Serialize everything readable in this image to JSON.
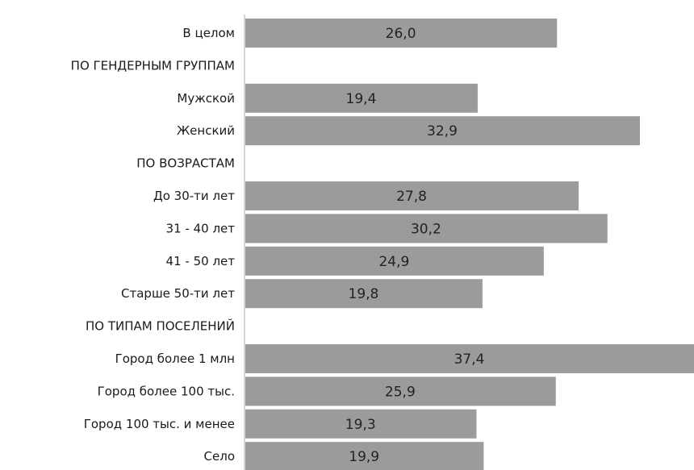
{
  "chart_data": {
    "type": "bar",
    "orientation": "horizontal",
    "categories": [
      "В целом",
      "ПО ГЕНДЕРНЫМ ГРУППАМ",
      "Мужской",
      "Женский",
      "ПО ВОЗРАСТАМ",
      "До 30-ти лет",
      "31 - 40 лет",
      "41 - 50 лет",
      "Старше 50-ти лет",
      "ПО ТИПАМ ПОСЕЛЕНИЙ",
      "Город более 1 млн",
      "Город более 100 тыс.",
      "Город 100 тыс. и менее",
      "Село"
    ],
    "values": [
      26.0,
      null,
      19.4,
      32.9,
      null,
      27.8,
      30.2,
      24.9,
      19.8,
      null,
      37.4,
      25.9,
      19.3,
      19.9
    ],
    "value_labels": [
      "26,0",
      "",
      "19,4",
      "32,9",
      "",
      "27,8",
      "30,2",
      "24,9",
      "19,8",
      "",
      "37,4",
      "25,9",
      "19,3",
      "19,9"
    ],
    "xlim": [
      0,
      37.4
    ],
    "bar_color": "#9b9b9b",
    "axis_color": "#b8b8b8",
    "grid": false,
    "legend": "none"
  }
}
